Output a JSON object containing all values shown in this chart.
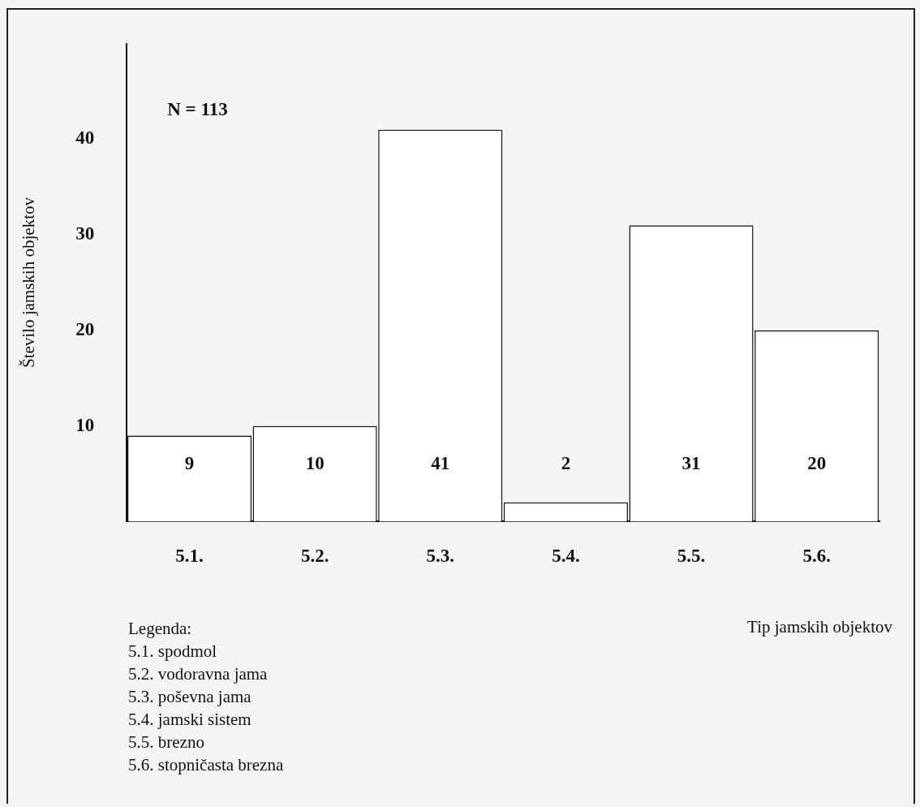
{
  "chart_data": {
    "type": "bar",
    "ylabel": "Število jamskih objektov",
    "xlabel": "Tip jamskih objektov",
    "categories": [
      "5.1.",
      "5.2.",
      "5.3.",
      "5.4.",
      "5.5.",
      "5.6."
    ],
    "values": [
      9,
      10,
      41,
      2,
      31,
      20
    ],
    "color": "#ffffff",
    "data_labels": true,
    "ylim": [
      0,
      50
    ],
    "yticks": [
      10,
      20,
      30,
      40
    ],
    "grid": false,
    "legend": false,
    "annotations": [
      "N = 113",
      "Legenda:",
      "5.1.  spodmol",
      "5.2.  vodoravna jama",
      "5.3.  poševna jama",
      "5.4.  jamski sistem",
      "5.5.  brezno",
      "5.6.  stopničasta brezna"
    ]
  }
}
